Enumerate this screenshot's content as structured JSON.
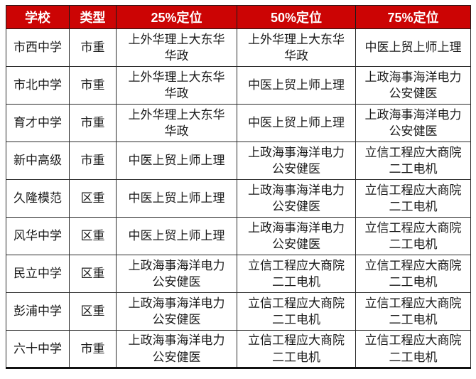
{
  "colors": {
    "header_bg": "#cc0404",
    "header_text": "#ffffff",
    "border": "#2b2b2b",
    "cell_text": "#1a1a1a"
  },
  "table": {
    "columns": [
      "学校",
      "类型",
      "25%定位",
      "50%定位",
      "75%定位"
    ],
    "rows": [
      {
        "school": "市西中学",
        "type": "市重",
        "p25": "上外华理上大东华\n华政",
        "p50": "上外华理上大东华\n华政",
        "p75": "中医上贸上师上理"
      },
      {
        "school": "市北中学",
        "type": "市重",
        "p25": "上外华理上大东华\n华政",
        "p50": "中医上贸上师上理",
        "p75": "上政海事海洋电力\n公安健医"
      },
      {
        "school": "育才中学",
        "type": "市重",
        "p25": "上外华理上大东华\n华政",
        "p50": "中医上贸上师上理",
        "p75": "上政海事海洋电力\n公安健医"
      },
      {
        "school": "新中高级",
        "type": "市重",
        "p25": "中医上贸上师上理",
        "p50": "上政海事海洋电力\n公安健医",
        "p75": "立信工程应大商院\n二工电机"
      },
      {
        "school": "久隆模范",
        "type": "区重",
        "p25": "中医上贸上师上理",
        "p50": "上政海事海洋电力\n公安健医",
        "p75": "立信工程应大商院\n二工电机"
      },
      {
        "school": "风华中学",
        "type": "区重",
        "p25": "中医上贸上师上理",
        "p50": "上政海事海洋电力\n公安健医",
        "p75": "立信工程应大商院\n二工电机"
      },
      {
        "school": "民立中学",
        "type": "区重",
        "p25": "上政海事海洋电力\n公安健医",
        "p50": "立信工程应大商院\n二工电机",
        "p75": "立信工程应大商院\n二工电机"
      },
      {
        "school": "彭浦中学",
        "type": "区重",
        "p25": "上政海事海洋电力\n公安健医",
        "p50": "立信工程应大商院\n二工电机",
        "p75": "立信工程应大商院\n二工电机"
      },
      {
        "school": "六十中学",
        "type": "市重",
        "p25": "上政海事海洋电力\n公安健医",
        "p50": "立信工程应大商院\n二工电机",
        "p75": "立信工程应大商院\n二工电机"
      }
    ]
  }
}
